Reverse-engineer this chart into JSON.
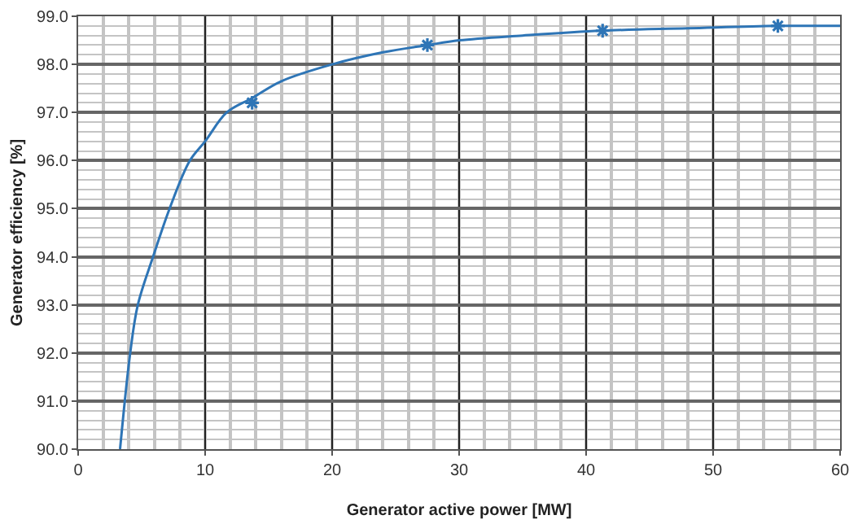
{
  "chart_data": {
    "type": "line",
    "xlabel": "Generator active power [MW]",
    "ylabel": "Generator efficiency [%]",
    "series": [
      {
        "color": "#2e75b6",
        "marker": "none",
        "x": [
          3.3,
          4.1,
          4.7,
          5.9,
          7.2,
          8.8,
          10,
          11.7,
          13.7,
          16,
          20,
          24,
          27.5,
          30,
          35,
          41.2,
          48,
          55,
          60
        ],
        "values": [
          90.0,
          92.0,
          93.0,
          94.0,
          95.0,
          96.0,
          96.4,
          97.0,
          97.3,
          97.65,
          98.0,
          98.25,
          98.4,
          98.5,
          98.6,
          98.7,
          98.75,
          98.8,
          98.8
        ]
      },
      {
        "type": "scatter",
        "marker": "cross",
        "color": "#2e75b6",
        "x": [
          13.7,
          27.5,
          41.3,
          55.1
        ],
        "values": [
          97.2,
          98.4,
          98.7,
          98.8
        ]
      }
    ],
    "grid": true,
    "xlim": [
      0,
      60
    ],
    "xticks": [
      0,
      10,
      20,
      30,
      40,
      50,
      60
    ],
    "ylim": [
      90,
      99
    ],
    "yticks": [
      {
        "value": 90,
        "label": "90.0"
      },
      {
        "value": 91,
        "label": "91.0"
      },
      {
        "value": 92,
        "label": "92.0"
      },
      {
        "value": 93,
        "label": "93.0"
      },
      {
        "value": 94,
        "label": "94.0"
      },
      {
        "value": 95,
        "label": "95.0"
      },
      {
        "value": 96,
        "label": "96.0"
      },
      {
        "value": 97,
        "label": "97.0"
      },
      {
        "value": 98,
        "label": "98.0"
      },
      {
        "value": 99,
        "label": "99.0"
      }
    ]
  }
}
